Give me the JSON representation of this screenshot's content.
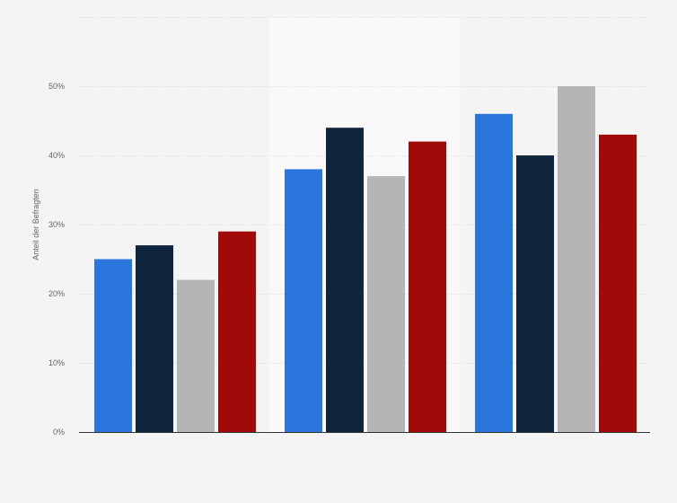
{
  "chart_data": {
    "type": "bar",
    "title": "",
    "xlabel": "",
    "ylabel": "Anteil der Befragten",
    "ylim": [
      0,
      60
    ],
    "y_ticks": [
      0,
      10,
      20,
      30,
      40,
      50
    ],
    "y_tick_labels": [
      "0%",
      "10%",
      "20%",
      "30%",
      "40%",
      "50%"
    ],
    "grid": true,
    "legend": "none",
    "categories": [
      "",
      "",
      ""
    ],
    "highlighted_group_index": 1,
    "series": [
      {
        "name": "",
        "color": "#2a76dd",
        "values": [
          25,
          38,
          46
        ]
      },
      {
        "name": "",
        "color": "#0f253d",
        "values": [
          27,
          44,
          40
        ]
      },
      {
        "name": "",
        "color": "#b5b5b5",
        "values": [
          22,
          37,
          50
        ]
      },
      {
        "name": "",
        "color": "#a20a0a",
        "values": [
          29,
          42,
          43
        ]
      }
    ]
  }
}
